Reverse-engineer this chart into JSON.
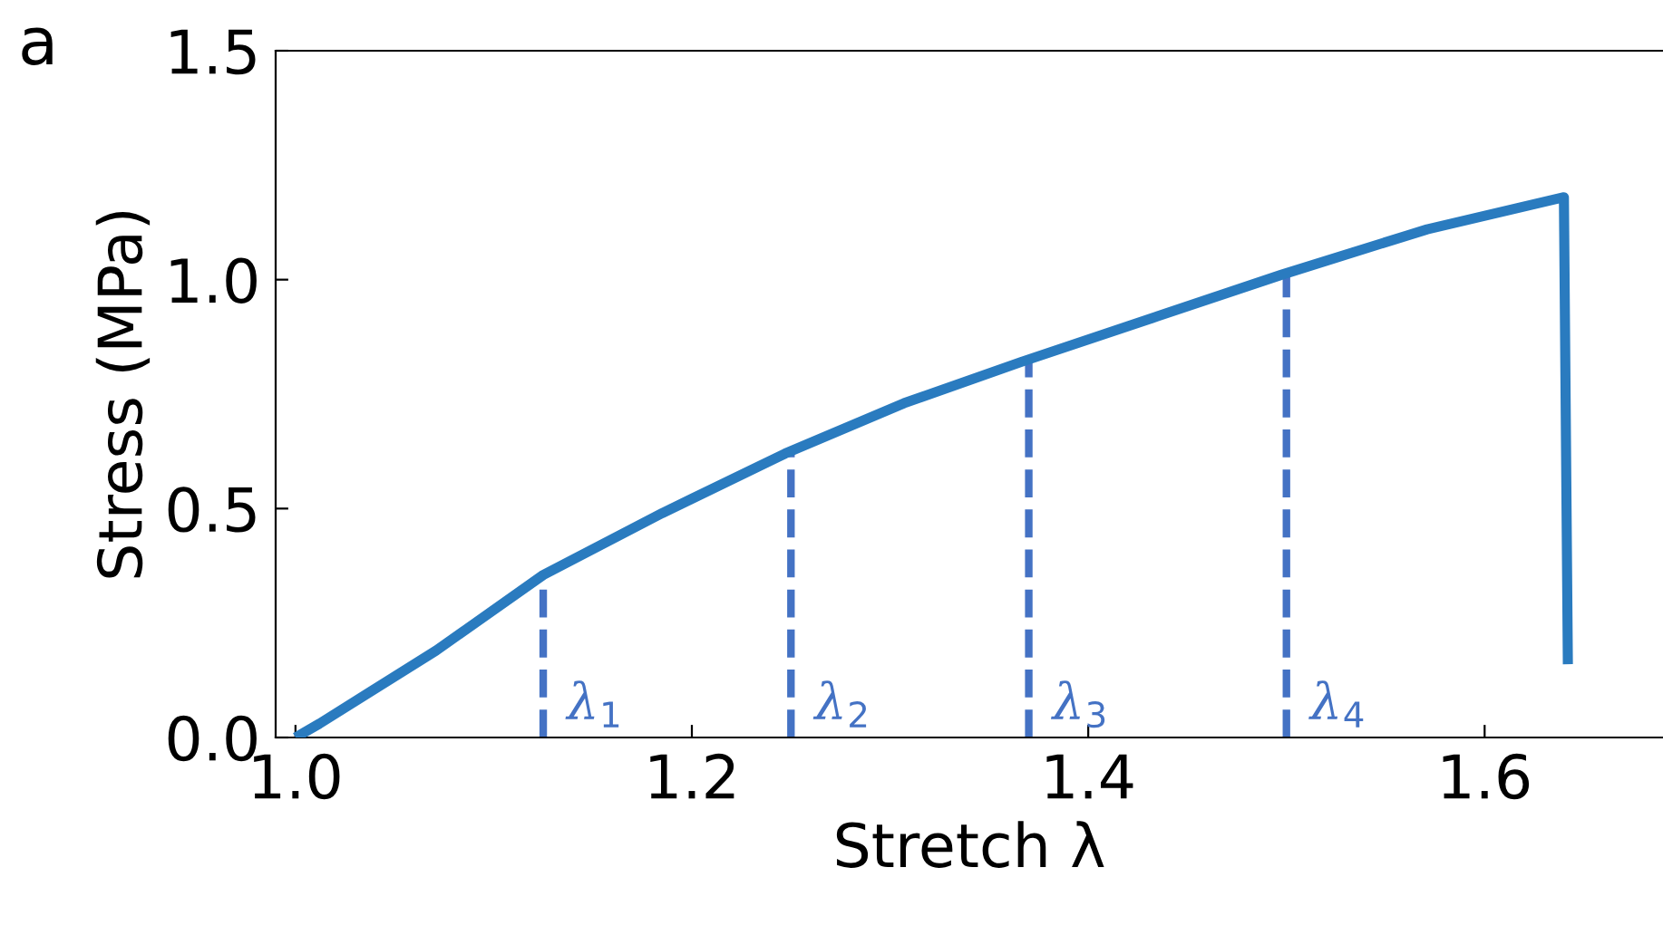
{
  "chart_data": {
    "type": "line",
    "xlabel": "Stretch λ",
    "ylabel": "Stress (MPa)",
    "x": [
      1.0,
      1.012,
      1.071,
      1.125,
      1.185,
      1.247,
      1.307,
      1.366,
      1.435,
      1.497,
      1.571,
      1.64,
      1.642
    ],
    "series": [
      {
        "color": "#2a7bbf",
        "values": [
          0.0,
          0.03,
          0.19,
          0.355,
          0.49,
          0.62,
          0.73,
          0.82,
          0.92,
          1.01,
          1.11,
          1.18,
          0.16
        ]
      }
    ],
    "xlim": [
      0.99,
      1.69
    ],
    "ylim": [
      0.0,
      1.5
    ],
    "xticks": [
      {
        "value": 1.0,
        "label": "1.0"
      },
      {
        "value": 1.2,
        "label": "1.2"
      },
      {
        "value": 1.4,
        "label": "1.4"
      },
      {
        "value": 1.6,
        "label": "1.6"
      }
    ],
    "yticks": [
      {
        "value": 0.0,
        "label": "0.0"
      },
      {
        "value": 0.5,
        "label": "0.5"
      },
      {
        "value": 1.0,
        "label": "1.0"
      },
      {
        "value": 1.5,
        "label": "1.5"
      }
    ],
    "grid": false,
    "legend": false,
    "marker": "none",
    "line_style": "solid",
    "ref_lines": [
      {
        "axis": "x",
        "value": 1.125,
        "label": "λ$_{1}$",
        "color": "#4472c4",
        "line_style": "dashed"
      },
      {
        "axis": "x",
        "value": 1.25,
        "label": "λ$_{2}$",
        "color": "#4472c4",
        "line_style": "dashed"
      },
      {
        "axis": "x",
        "value": 1.37,
        "label": "λ$_{3}$",
        "color": "#4472c4",
        "line_style": "dashed"
      },
      {
        "axis": "x",
        "value": 1.5,
        "label": "λ$_{4}$",
        "color": "#4472c4",
        "line_style": "dashed"
      }
    ],
    "annotations": [
      "a"
    ]
  }
}
